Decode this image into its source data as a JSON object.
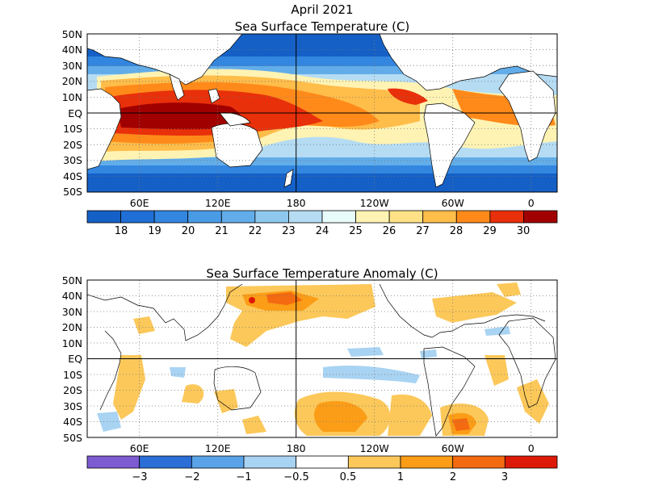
{
  "figure": {
    "title_line1": "April 2021",
    "title_line2": "Sea Surface Temperature (C)",
    "anomaly_title": "Sea Surface Temperature Anomaly (C)"
  },
  "axes": {
    "lat_labels": [
      "50N",
      "40N",
      "30N",
      "20N",
      "10N",
      "EQ",
      "10S",
      "20S",
      "30S",
      "40S",
      "50S"
    ],
    "lon_labels": [
      "60E",
      "120E",
      "180",
      "120W",
      "60W",
      "0"
    ]
  },
  "sst_colorbar": {
    "colors": [
      "#1560c6",
      "#1f6fd6",
      "#3286e0",
      "#4a9be6",
      "#62ade9",
      "#8fc8ef",
      "#b5dcf3",
      "#e8fbfb",
      "#fff3b3",
      "#ffe287",
      "#ffbd4a",
      "#ff8a1a",
      "#e8300a",
      "#a10000"
    ],
    "labels": [
      "18",
      "19",
      "20",
      "21",
      "22",
      "23",
      "24",
      "25",
      "26",
      "27",
      "28",
      "29",
      "30"
    ]
  },
  "anom_colorbar": {
    "colors": [
      "#7d5bd1",
      "#2c6ed8",
      "#5aa3e8",
      "#a9d3f2",
      "#ffffff",
      "#fcc85a",
      "#fb9d17",
      "#f46a10",
      "#dd1a08"
    ],
    "labels": [
      "−3",
      "−2",
      "−1",
      "−0.5",
      "0.5",
      "1",
      "2",
      "3"
    ]
  }
}
